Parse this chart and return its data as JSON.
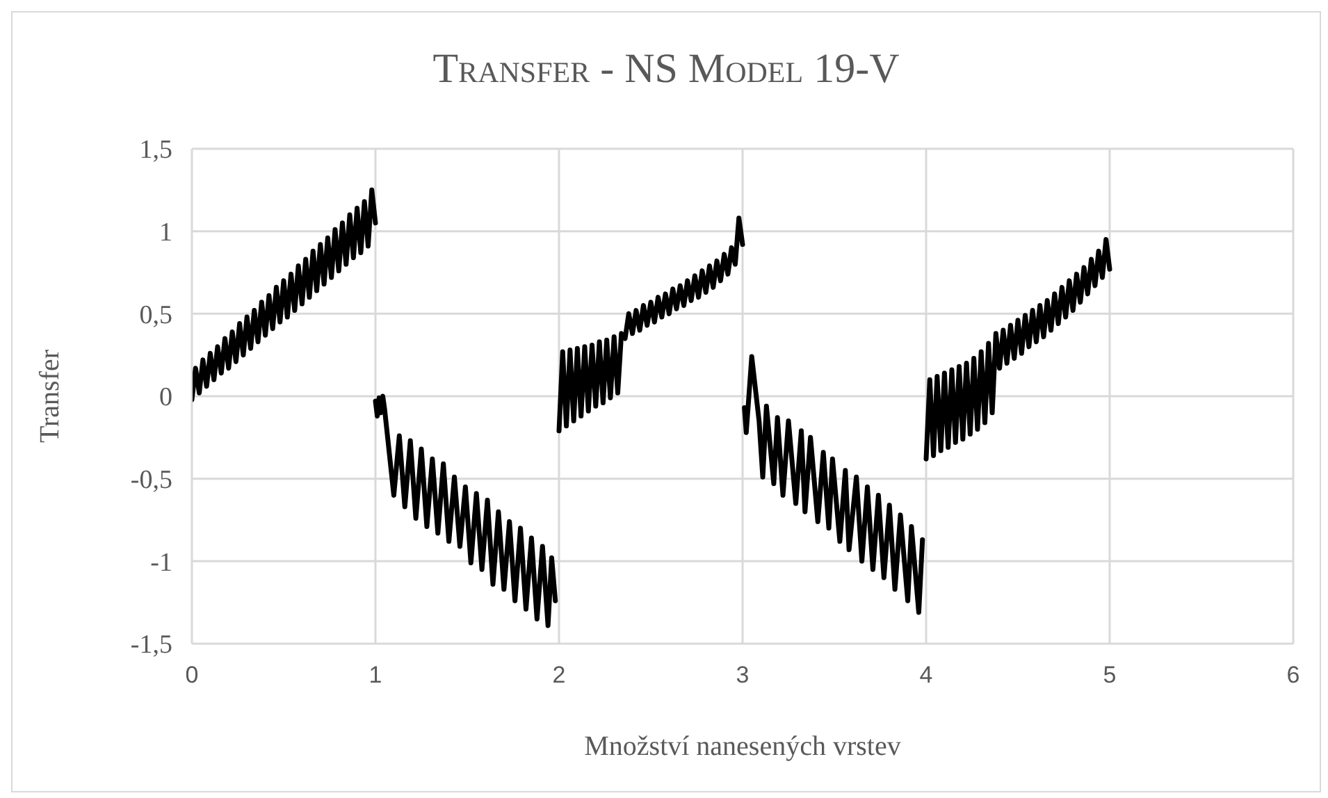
{
  "chart_data": {
    "type": "line",
    "title": "Transfer - NS Model 19-V",
    "xlabel": "Množství nanesených vrstev",
    "ylabel": "Transfer",
    "xlim": [
      0,
      6
    ],
    "xticks": [
      0,
      1,
      2,
      3,
      4,
      5,
      6
    ],
    "ylim": [
      -1.5,
      1.5
    ],
    "yticks": [
      {
        "value": -1.5,
        "label": "-1,5"
      },
      -1,
      {
        "value": -0.5,
        "label": "-0,5"
      },
      0,
      {
        "value": 0.5,
        "label": "0,5"
      },
      1,
      {
        "value": 1.5,
        "label": "1,5"
      }
    ],
    "grid": true,
    "marker": "none",
    "line_style": "solid",
    "series": [
      {
        "color": "#000000",
        "x": [
          0,
          0.02,
          0.04,
          0.06,
          0.08,
          0.1,
          0.12,
          0.14,
          0.16,
          0.18,
          0.2,
          0.22,
          0.24,
          0.26,
          0.28,
          0.3,
          0.32,
          0.34,
          0.36,
          0.38,
          0.4,
          0.42,
          0.44,
          0.46,
          0.48,
          0.5,
          0.52,
          0.54,
          0.56,
          0.58,
          0.6,
          0.62,
          0.64,
          0.66,
          0.68,
          0.7,
          0.72,
          0.74,
          0.76,
          0.78,
          0.8,
          0.82,
          0.84,
          0.86,
          0.88,
          0.9,
          0.92,
          0.94,
          0.96,
          0.98,
          1.0
        ],
        "values": [
          -0.02,
          0.17,
          0.02,
          0.22,
          0.06,
          0.26,
          0.1,
          0.3,
          0.14,
          0.35,
          0.17,
          0.39,
          0.21,
          0.44,
          0.25,
          0.48,
          0.29,
          0.52,
          0.33,
          0.57,
          0.37,
          0.61,
          0.41,
          0.66,
          0.45,
          0.7,
          0.48,
          0.74,
          0.52,
          0.79,
          0.56,
          0.83,
          0.6,
          0.88,
          0.64,
          0.92,
          0.68,
          0.96,
          0.72,
          1.01,
          0.76,
          1.05,
          0.8,
          1.1,
          0.84,
          1.14,
          0.87,
          1.18,
          0.91,
          1.25,
          1.05
        ]
      },
      {
        "color": "#000000",
        "x": [
          1.0,
          1.01,
          1.02,
          1.03,
          1.04,
          1.05,
          1.1,
          1.13,
          1.16,
          1.19,
          1.22,
          1.25,
          1.28,
          1.31,
          1.34,
          1.37,
          1.4,
          1.43,
          1.46,
          1.49,
          1.52,
          1.55,
          1.58,
          1.61,
          1.64,
          1.67,
          1.7,
          1.73,
          1.76,
          1.79,
          1.82,
          1.85,
          1.88,
          1.91,
          1.94,
          1.96,
          1.98
        ],
        "values": [
          -0.03,
          -0.12,
          -0.01,
          -0.1,
          0.0,
          -0.08,
          -0.6,
          -0.24,
          -0.67,
          -0.27,
          -0.74,
          -0.32,
          -0.79,
          -0.38,
          -0.83,
          -0.41,
          -0.88,
          -0.49,
          -0.91,
          -0.55,
          -1.01,
          -0.59,
          -1.05,
          -0.63,
          -1.14,
          -0.7,
          -1.17,
          -0.76,
          -1.24,
          -0.8,
          -1.29,
          -0.86,
          -1.35,
          -0.91,
          -1.39,
          -0.98,
          -1.24
        ]
      },
      {
        "color": "#000000",
        "x": [
          2.0,
          2.02,
          2.04,
          2.06,
          2.08,
          2.1,
          2.12,
          2.14,
          2.16,
          2.18,
          2.2,
          2.22,
          2.24,
          2.26,
          2.28,
          2.3,
          2.32,
          2.34,
          2.36,
          2.38,
          2.4,
          2.42,
          2.44,
          2.46,
          2.48,
          2.5,
          2.52,
          2.54,
          2.56,
          2.58,
          2.6,
          2.62,
          2.64,
          2.66,
          2.68,
          2.7,
          2.72,
          2.74,
          2.76,
          2.78,
          2.8,
          2.82,
          2.84,
          2.86,
          2.88,
          2.9,
          2.92,
          2.94,
          2.96,
          2.98,
          3.0
        ],
        "values": [
          -0.21,
          0.27,
          -0.18,
          0.28,
          -0.15,
          0.29,
          -0.12,
          0.3,
          -0.09,
          0.31,
          -0.06,
          0.33,
          -0.04,
          0.34,
          -0.01,
          0.36,
          0.02,
          0.38,
          0.35,
          0.5,
          0.38,
          0.52,
          0.4,
          0.55,
          0.43,
          0.57,
          0.45,
          0.6,
          0.48,
          0.62,
          0.5,
          0.65,
          0.53,
          0.67,
          0.55,
          0.7,
          0.58,
          0.73,
          0.6,
          0.76,
          0.63,
          0.79,
          0.66,
          0.82,
          0.7,
          0.86,
          0.74,
          0.9,
          0.8,
          1.08,
          0.92
        ]
      },
      {
        "color": "#000000",
        "x": [
          3.01,
          3.02,
          3.05,
          3.09,
          3.11,
          3.13,
          3.17,
          3.19,
          3.22,
          3.25,
          3.29,
          3.32,
          3.34,
          3.37,
          3.41,
          3.44,
          3.47,
          3.49,
          3.53,
          3.56,
          3.58,
          3.62,
          3.65,
          3.68,
          3.71,
          3.74,
          3.77,
          3.8,
          3.83,
          3.86,
          3.9,
          3.92,
          3.96,
          3.98
        ],
        "values": [
          -0.07,
          -0.22,
          0.24,
          -0.15,
          -0.49,
          -0.06,
          -0.53,
          -0.13,
          -0.6,
          -0.15,
          -0.65,
          -0.21,
          -0.7,
          -0.25,
          -0.76,
          -0.34,
          -0.8,
          -0.38,
          -0.88,
          -0.45,
          -0.93,
          -0.49,
          -1.0,
          -0.55,
          -1.05,
          -0.6,
          -1.1,
          -0.66,
          -1.17,
          -0.72,
          -1.24,
          -0.79,
          -1.31,
          -0.87
        ]
      },
      {
        "color": "#000000",
        "x": [
          4.0,
          4.02,
          4.04,
          4.06,
          4.08,
          4.1,
          4.12,
          4.14,
          4.16,
          4.18,
          4.2,
          4.22,
          4.24,
          4.26,
          4.28,
          4.3,
          4.32,
          4.34,
          4.36,
          4.38,
          4.4,
          4.42,
          4.44,
          4.46,
          4.48,
          4.5,
          4.52,
          4.54,
          4.56,
          4.58,
          4.6,
          4.62,
          4.64,
          4.66,
          4.68,
          4.7,
          4.72,
          4.74,
          4.76,
          4.78,
          4.8,
          4.82,
          4.84,
          4.86,
          4.88,
          4.9,
          4.92,
          4.94,
          4.96,
          4.98,
          5.0
        ],
        "values": [
          -0.38,
          0.1,
          -0.36,
          0.12,
          -0.33,
          0.14,
          -0.31,
          0.16,
          -0.28,
          0.18,
          -0.26,
          0.2,
          -0.23,
          0.23,
          -0.2,
          0.27,
          -0.16,
          0.32,
          -0.1,
          0.38,
          0.17,
          0.4,
          0.2,
          0.43,
          0.23,
          0.46,
          0.26,
          0.49,
          0.3,
          0.52,
          0.33,
          0.55,
          0.36,
          0.58,
          0.4,
          0.62,
          0.44,
          0.66,
          0.48,
          0.7,
          0.52,
          0.74,
          0.57,
          0.78,
          0.62,
          0.83,
          0.67,
          0.88,
          0.72,
          0.95,
          0.77
        ]
      }
    ]
  }
}
